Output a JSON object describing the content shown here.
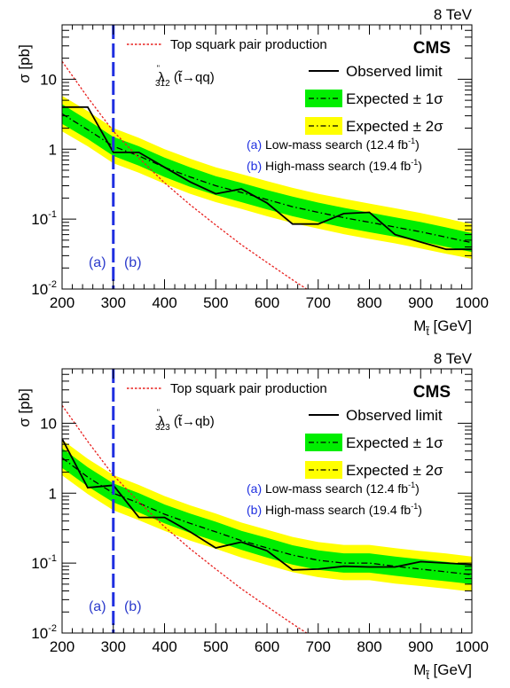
{
  "colors": {
    "observed": "#000000",
    "expected": "#000000",
    "band1": "#00ee00",
    "band2": "#ffff00",
    "theory": "#e8201e",
    "divider": "#1f2fe0",
    "regionLabel": "#2c3bcc"
  },
  "chart_data": [
    {
      "type": "line",
      "energy": "8 TeV",
      "experiment": "CMS",
      "ylabel": "σ [pb]",
      "xlabel": "M",
      "xlabel_sub": "t̃",
      "xlabel_unit": "[GeV]",
      "xlim": [
        200,
        1000
      ],
      "ylim": [
        0.01,
        60
      ],
      "yscale": "log",
      "xticks": [
        "200",
        "300",
        "400",
        "500",
        "600",
        "700",
        "800",
        "900",
        "1000"
      ],
      "yticks": [
        {
          "value": 10,
          "base": "10",
          "exp": ""
        },
        {
          "value": 1,
          "base": "1",
          "exp": ""
        },
        {
          "value": 0.1,
          "base": "10",
          "exp": "-1"
        },
        {
          "value": 0.01,
          "base": "10",
          "exp": "-2"
        }
      ],
      "coupling": {
        "symbol": "λ",
        "mark": "\"",
        "index": "312",
        "decay": "(t̃→qq)"
      },
      "divider_x": 300,
      "region_labels": {
        "left": "(a)",
        "right": "(b)"
      },
      "legend": {
        "theory": "Top squark pair production",
        "observed": "Observed limit",
        "expected1": "Expected ± 1σ",
        "expected2": "Expected ± 2σ",
        "low_tag": "(a)",
        "low_text": "Low-mass search (12.4 fb",
        "low_sup": "-1",
        "low_close": ")",
        "high_tag": "(b)",
        "high_text": "High-mass search (19.4 fb",
        "high_sup": "-1",
        "high_close": ")"
      },
      "x": [
        200,
        250,
        300,
        350,
        400,
        450,
        500,
        550,
        600,
        650,
        700,
        750,
        800,
        850,
        900,
        950,
        1000
      ],
      "observed": [
        4.0,
        4.0,
        0.9,
        0.9,
        0.55,
        0.34,
        0.23,
        0.27,
        0.17,
        0.085,
        0.085,
        0.12,
        0.125,
        0.06,
        0.047,
        0.037,
        0.037
      ],
      "expected": [
        3.2,
        1.9,
        1.1,
        0.8,
        0.55,
        0.4,
        0.3,
        0.24,
        0.19,
        0.15,
        0.125,
        0.105,
        0.09,
        0.077,
        0.066,
        0.055,
        0.046
      ],
      "band1": {
        "low": [
          2.3,
          1.4,
          0.8,
          0.58,
          0.4,
          0.29,
          0.22,
          0.175,
          0.138,
          0.11,
          0.091,
          0.076,
          0.065,
          0.056,
          0.048,
          0.04,
          0.034
        ],
        "high": [
          4.4,
          2.6,
          1.5,
          1.1,
          0.76,
          0.55,
          0.41,
          0.33,
          0.26,
          0.21,
          0.172,
          0.145,
          0.124,
          0.106,
          0.091,
          0.076,
          0.063
        ]
      },
      "band2": {
        "low": [
          1.8,
          1.1,
          0.63,
          0.46,
          0.32,
          0.23,
          0.175,
          0.14,
          0.11,
          0.088,
          0.073,
          0.061,
          0.052,
          0.045,
          0.038,
          0.032,
          0.027
        ],
        "high": [
          5.8,
          3.5,
          2.0,
          1.45,
          1.0,
          0.73,
          0.55,
          0.44,
          0.35,
          0.28,
          0.23,
          0.195,
          0.167,
          0.143,
          0.122,
          0.102,
          0.085
        ]
      },
      "theory_x": [
        200,
        250,
        300,
        350,
        400,
        450,
        500,
        550,
        600,
        650,
        700
      ],
      "theory": [
        18,
        5.5,
        1.8,
        0.75,
        0.33,
        0.16,
        0.082,
        0.043,
        0.024,
        0.0135,
        0.0078
      ]
    },
    {
      "type": "line",
      "energy": "8 TeV",
      "experiment": "CMS",
      "ylabel": "σ [pb]",
      "xlabel": "M",
      "xlabel_sub": "t̃",
      "xlabel_unit": "[GeV]",
      "xlim": [
        200,
        1000
      ],
      "ylim": [
        0.01,
        60
      ],
      "yscale": "log",
      "xticks": [
        "200",
        "300",
        "400",
        "500",
        "600",
        "700",
        "800",
        "900",
        "1000"
      ],
      "yticks": [
        {
          "value": 10,
          "base": "10",
          "exp": ""
        },
        {
          "value": 1,
          "base": "1",
          "exp": ""
        },
        {
          "value": 0.1,
          "base": "10",
          "exp": "-1"
        },
        {
          "value": 0.01,
          "base": "10",
          "exp": "-2"
        }
      ],
      "coupling": {
        "symbol": "λ",
        "mark": "\"",
        "index": "323",
        "decay": "(t̃→qb)"
      },
      "divider_x": 300,
      "region_labels": {
        "left": "(a)",
        "right": "(b)"
      },
      "legend": {
        "theory": "Top squark pair production",
        "observed": "Observed limit",
        "expected1": "Expected ± 1σ",
        "expected2": "Expected ± 2σ",
        "low_tag": "(a)",
        "low_text": "Low-mass search (12.4 fb",
        "low_sup": "-1",
        "low_close": ")",
        "high_tag": "(b)",
        "high_text": "High-mass search (19.4 fb",
        "high_sup": "-1",
        "high_close": ")"
      },
      "x": [
        200,
        250,
        300,
        350,
        400,
        450,
        500,
        550,
        600,
        650,
        700,
        750,
        800,
        850,
        900,
        950,
        1000
      ],
      "observed": [
        6.0,
        1.2,
        1.3,
        0.45,
        0.45,
        0.28,
        0.165,
        0.2,
        0.15,
        0.08,
        0.082,
        0.09,
        0.088,
        0.088,
        0.105,
        0.1,
        0.095
      ],
      "expected": [
        3.2,
        1.7,
        1.0,
        0.72,
        0.5,
        0.37,
        0.28,
        0.21,
        0.165,
        0.13,
        0.11,
        0.1,
        0.1,
        0.09,
        0.082,
        0.075,
        0.068
      ],
      "band1": {
        "low": [
          2.3,
          1.25,
          0.74,
          0.53,
          0.37,
          0.27,
          0.205,
          0.155,
          0.12,
          0.095,
          0.08,
          0.073,
          0.073,
          0.066,
          0.06,
          0.055,
          0.05
        ],
        "high": [
          4.4,
          2.35,
          1.38,
          1.0,
          0.69,
          0.51,
          0.39,
          0.29,
          0.23,
          0.18,
          0.152,
          0.138,
          0.138,
          0.124,
          0.113,
          0.104,
          0.094
        ]
      },
      "band2": {
        "low": [
          1.8,
          0.97,
          0.57,
          0.41,
          0.29,
          0.21,
          0.16,
          0.12,
          0.094,
          0.074,
          0.063,
          0.057,
          0.057,
          0.051,
          0.047,
          0.043,
          0.039
        ],
        "high": [
          5.8,
          3.1,
          1.82,
          1.31,
          0.91,
          0.67,
          0.51,
          0.38,
          0.3,
          0.237,
          0.2,
          0.182,
          0.182,
          0.164,
          0.149,
          0.137,
          0.124
        ]
      },
      "theory_x": [
        200,
        250,
        300,
        350,
        400,
        450,
        500,
        550,
        600,
        650,
        700
      ],
      "theory": [
        18,
        5.5,
        1.8,
        0.75,
        0.33,
        0.16,
        0.082,
        0.043,
        0.024,
        0.0135,
        0.0078
      ]
    }
  ]
}
